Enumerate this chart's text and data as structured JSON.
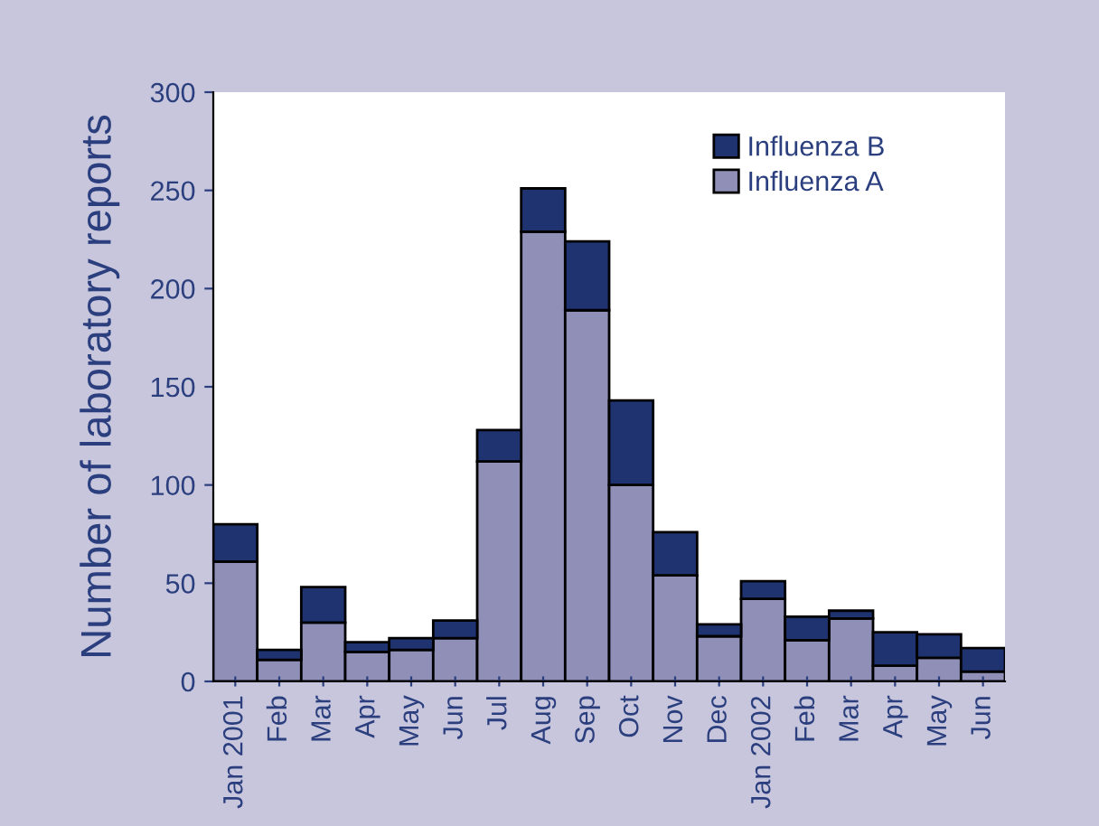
{
  "chart_data": {
    "type": "bar",
    "stacked": true,
    "ylabel": "Number of laboratory reports",
    "categories": [
      "Jan 2001",
      "Feb",
      "Mar",
      "Apr",
      "May",
      "Jun",
      "Jul",
      "Aug",
      "Sep",
      "Oct",
      "Nov",
      "Dec",
      "Jan 2002",
      "Feb",
      "Mar",
      "Apr",
      "May",
      "Jun"
    ],
    "series": [
      {
        "name": "Influenza A",
        "color": "#8f8fb8",
        "values": [
          61,
          11,
          30,
          15,
          16,
          22,
          112,
          229,
          189,
          100,
          54,
          23,
          42,
          21,
          32,
          8,
          12,
          5
        ]
      },
      {
        "name": "Influenza B",
        "color": "#1f3370",
        "values": [
          19,
          5,
          18,
          5,
          6,
          9,
          16,
          22,
          35,
          43,
          22,
          6,
          9,
          12,
          4,
          17,
          12,
          12
        ]
      }
    ],
    "ylim": [
      0,
      300
    ],
    "yticks": [
      0,
      50,
      100,
      150,
      200,
      250,
      300
    ],
    "grid": false,
    "legend": "top right"
  }
}
